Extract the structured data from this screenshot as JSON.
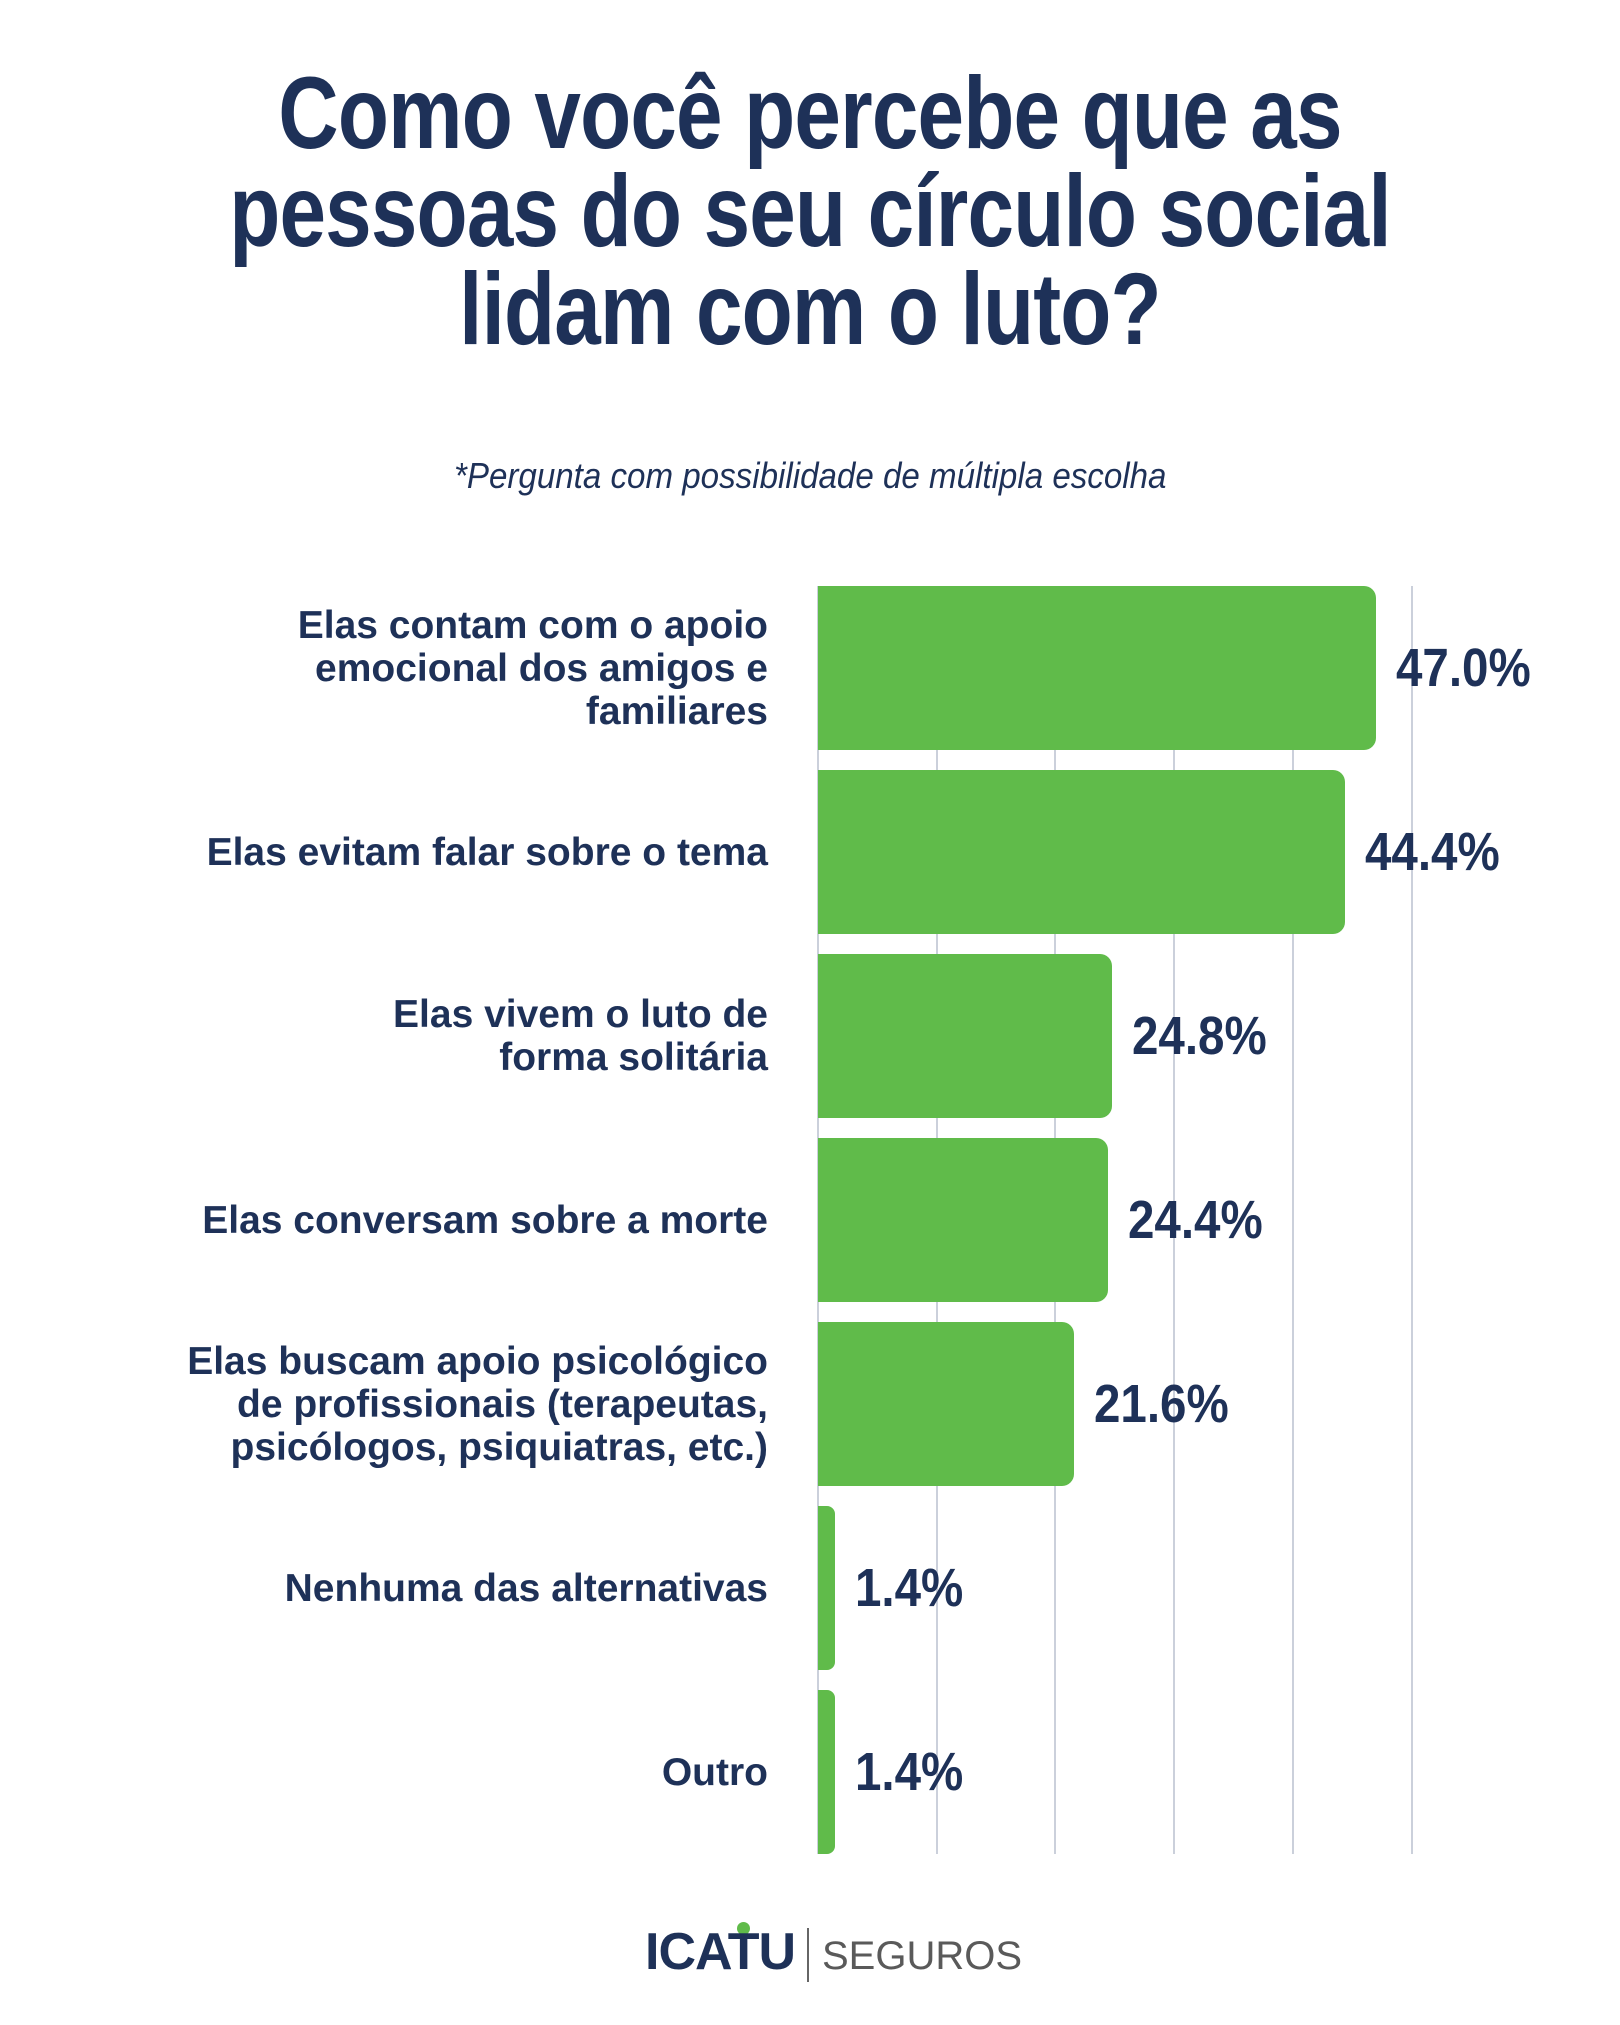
{
  "title_lines": [
    "Como você percebe que as",
    "pessoas do seu círculo social",
    "lidam com o luto?"
  ],
  "subtitle": "*Pergunta com possibilidade de múltipla escolha",
  "colors": {
    "bar": "#60bb4a",
    "text": "#1e3158",
    "grid": "#cbd0db",
    "logo_dot": "#60bb4a",
    "logo_sub": "#5a5a5a"
  },
  "logo": {
    "brand": "ICATU",
    "sub": "SEGUROS",
    "dot_icon": "green-dot-icon"
  },
  "bars": [
    {
      "label": "Elas contam com o apoio\nemocional dos amigos e\nfamiliares",
      "value": 47.0,
      "display": "47.0%"
    },
    {
      "label": "Elas evitam falar sobre o tema",
      "value": 44.4,
      "display": "44.4%"
    },
    {
      "label": "Elas vivem o luto de\nforma solitária",
      "value": 24.8,
      "display": "24.8%"
    },
    {
      "label": "Elas conversam sobre a morte",
      "value": 24.4,
      "display": "24.4%"
    },
    {
      "label": "Elas buscam apoio psicológico\nde profissionais (terapeutas,\npsicólogos, psiquiatras, etc.)",
      "value": 21.6,
      "display": "21.6%"
    },
    {
      "label": "Nenhuma das alternativas",
      "value": 1.4,
      "display": "1.4%"
    },
    {
      "label": "Outro",
      "value": 1.4,
      "display": "1.4%"
    }
  ],
  "chart_data": {
    "type": "bar",
    "orientation": "horizontal",
    "title": "Como você percebe que as pessoas do seu círculo social lidam com o luto?",
    "subtitle": "*Pergunta com possibilidade de múltipla escolha",
    "categories": [
      "Elas contam com o apoio emocional dos amigos e familiares",
      "Elas evitam falar sobre o tema",
      "Elas vivem o luto de forma solitária",
      "Elas conversam sobre a morte",
      "Elas buscam apoio psicológico de profissionais (terapeutas, psicólogos, psiquiatras, etc.)",
      "Nenhuma das alternativas",
      "Outro"
    ],
    "values": [
      47.0,
      44.4,
      24.8,
      24.4,
      21.6,
      1.4,
      1.4
    ],
    "value_labels": [
      "47.0%",
      "44.4%",
      "24.8%",
      "24.4%",
      "21.6%",
      "1.4%",
      "1.4%"
    ],
    "unit": "%",
    "xlabel": "",
    "ylabel": "",
    "xlim": [
      0,
      50
    ],
    "grid": {
      "vertical": true,
      "step": 10,
      "tick_labels_shown": false
    },
    "legend": null
  }
}
